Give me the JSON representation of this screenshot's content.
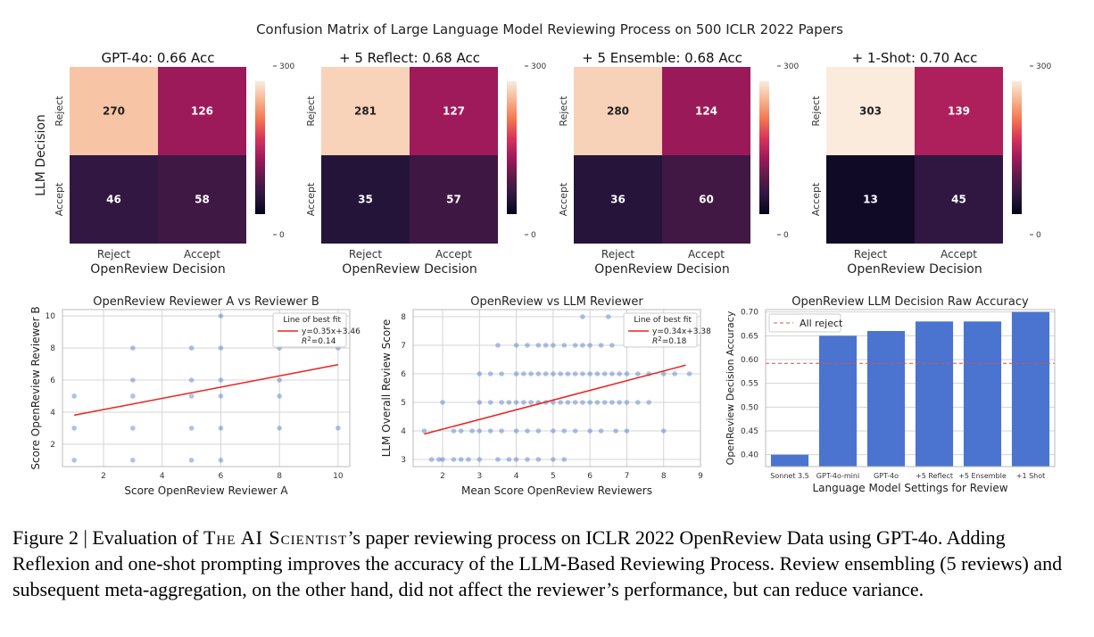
{
  "supertitle": "Confusion Matrix of Large Language Model Reviewing Process on 500 ICLR 2022 Papers",
  "colors": {
    "line": "#e8231f",
    "point": "#4c78c9",
    "bar": "#4a74cf",
    "grid": "#d4d4d4",
    "ref_line": "#d9504a",
    "cmap": [
      "#03051a",
      "#2d1740",
      "#601a4a",
      "#a11a5b",
      "#d8345a",
      "#f37651",
      "#f6b48f",
      "#faebdd"
    ]
  },
  "caption": {
    "prefix": "Figure 2 | Evaluation of ",
    "name": "The AI Scientist",
    "suffix": "’s paper reviewing process on ICLR 2022 OpenReview Data using GPT-4o. Adding Reflexion and one-shot prompting improves the accuracy of the LLM-Based Reviewing Process. Review ensembling (5 reviews) and subsequent meta-aggregation, on the other hand, did not affect the reviewer’s performance, but can reduce variance."
  },
  "chart_data": [
    {
      "type": "heatmap",
      "title": "GPT-4o: 0.66 Acc",
      "row_labels": [
        "Reject",
        "Accept"
      ],
      "col_labels": [
        "Reject",
        "Accept"
      ],
      "values": [
        [
          270,
          126
        ],
        [
          46,
          58
        ]
      ],
      "xlabel": "OpenReview Decision",
      "ylabel": "LLM Decision",
      "colorbar": {
        "min": 0,
        "max": 300,
        "ticks": [
          "0",
          "300"
        ]
      }
    },
    {
      "type": "heatmap",
      "title": "+ 5 Reflect: 0.68 Acc",
      "row_labels": [
        "Reject",
        "Accept"
      ],
      "col_labels": [
        "Reject",
        "Accept"
      ],
      "values": [
        [
          281,
          127
        ],
        [
          35,
          57
        ]
      ],
      "xlabel": "OpenReview Decision",
      "ylabel": "",
      "colorbar": {
        "min": 0,
        "max": 300,
        "ticks": [
          "0",
          "300"
        ]
      }
    },
    {
      "type": "heatmap",
      "title": "+ 5 Ensemble: 0.68 Acc",
      "row_labels": [
        "Reject",
        "Accept"
      ],
      "col_labels": [
        "Reject",
        "Accept"
      ],
      "values": [
        [
          280,
          124
        ],
        [
          36,
          60
        ]
      ],
      "xlabel": "OpenReview Decision",
      "ylabel": "",
      "colorbar": {
        "min": 0,
        "max": 300,
        "ticks": [
          "0",
          "300"
        ]
      }
    },
    {
      "type": "heatmap",
      "title": "+ 1-Shot: 0.70 Acc",
      "row_labels": [
        "Reject",
        "Accept"
      ],
      "col_labels": [
        "Reject",
        "Accept"
      ],
      "values": [
        [
          303,
          139
        ],
        [
          13,
          45
        ]
      ],
      "xlabel": "OpenReview Decision",
      "ylabel": "",
      "colorbar": {
        "min": 0,
        "max": 300,
        "ticks": [
          "0",
          "300"
        ]
      }
    },
    {
      "type": "scatter",
      "title": "OpenReview Reviewer A vs Reviewer B",
      "xlabel": "Score OpenReview Reviewer A",
      "ylabel": "Score OpenReview Reviewer B",
      "xlim": [
        0.6,
        10.4
      ],
      "ylim": [
        0.6,
        10.4
      ],
      "xticks": [
        2,
        4,
        6,
        8,
        10
      ],
      "yticks": [
        2,
        4,
        6,
        8,
        10
      ],
      "points": [
        [
          1,
          1
        ],
        [
          1,
          3
        ],
        [
          1,
          5
        ],
        [
          3,
          1
        ],
        [
          3,
          3
        ],
        [
          3,
          5
        ],
        [
          3,
          6
        ],
        [
          3,
          8
        ],
        [
          5,
          1
        ],
        [
          5,
          3
        ],
        [
          5,
          5
        ],
        [
          5,
          6
        ],
        [
          5,
          8
        ],
        [
          6,
          1
        ],
        [
          6,
          3
        ],
        [
          6,
          5
        ],
        [
          6,
          6
        ],
        [
          6,
          8
        ],
        [
          6,
          10
        ],
        [
          8,
          3
        ],
        [
          8,
          5
        ],
        [
          8,
          6
        ],
        [
          8,
          8
        ],
        [
          10,
          3
        ],
        [
          10,
          8
        ]
      ],
      "fit": {
        "slope": 0.35,
        "intercept": 3.46,
        "x_range": [
          1,
          10
        ]
      },
      "legend": {
        "title": "Line of best fit",
        "equation": "y=0.35x+3.46",
        "r2_label": "R",
        "r2_value": "=0.14"
      }
    },
    {
      "type": "scatter",
      "title": "OpenReview vs LLM Reviewer",
      "xlabel": "Mean Score OpenReview Reviewers",
      "ylabel": "LLM Overall Review Score",
      "xlim": [
        1.2,
        9.0
      ],
      "ylim": [
        2.75,
        8.25
      ],
      "xticks": [
        2,
        3,
        4,
        5,
        6,
        7,
        8,
        9
      ],
      "yticks": [
        3,
        4,
        5,
        6,
        7,
        8
      ],
      "points": [
        [
          1.5,
          4
        ],
        [
          1.7,
          3
        ],
        [
          1.9,
          3
        ],
        [
          2.0,
          3
        ],
        [
          2.3,
          3
        ],
        [
          2.5,
          3
        ],
        [
          2.7,
          3
        ],
        [
          3.0,
          3
        ],
        [
          3.5,
          3
        ],
        [
          3.8,
          3
        ],
        [
          4.0,
          3
        ],
        [
          4.3,
          3
        ],
        [
          4.6,
          3
        ],
        [
          5.0,
          3
        ],
        [
          5.3,
          3
        ],
        [
          2.3,
          4
        ],
        [
          2.5,
          4
        ],
        [
          2.8,
          4
        ],
        [
          3.0,
          4
        ],
        [
          3.3,
          4
        ],
        [
          3.6,
          4
        ],
        [
          4.0,
          4
        ],
        [
          4.3,
          4
        ],
        [
          4.6,
          4
        ],
        [
          5.0,
          4
        ],
        [
          5.3,
          4
        ],
        [
          5.6,
          4
        ],
        [
          6.0,
          4
        ],
        [
          6.3,
          4
        ],
        [
          6.7,
          4
        ],
        [
          7.0,
          4
        ],
        [
          8.0,
          4
        ],
        [
          2.0,
          5
        ],
        [
          3.0,
          5
        ],
        [
          3.3,
          5
        ],
        [
          3.6,
          5
        ],
        [
          3.8,
          5
        ],
        [
          4.0,
          5
        ],
        [
          4.2,
          5
        ],
        [
          4.4,
          5
        ],
        [
          4.6,
          5
        ],
        [
          4.8,
          5
        ],
        [
          5.0,
          5
        ],
        [
          5.2,
          5
        ],
        [
          5.4,
          5
        ],
        [
          5.6,
          5
        ],
        [
          5.8,
          5
        ],
        [
          6.0,
          5
        ],
        [
          6.2,
          5
        ],
        [
          6.4,
          5
        ],
        [
          6.6,
          5
        ],
        [
          6.8,
          5
        ],
        [
          7.0,
          5
        ],
        [
          7.3,
          5
        ],
        [
          7.6,
          5
        ],
        [
          3.0,
          6
        ],
        [
          3.3,
          6
        ],
        [
          3.6,
          6
        ],
        [
          4.0,
          6
        ],
        [
          4.2,
          6
        ],
        [
          4.4,
          6
        ],
        [
          4.6,
          6
        ],
        [
          4.8,
          6
        ],
        [
          5.0,
          6
        ],
        [
          5.2,
          6
        ],
        [
          5.4,
          6
        ],
        [
          5.6,
          6
        ],
        [
          5.8,
          6
        ],
        [
          6.0,
          6
        ],
        [
          6.2,
          6
        ],
        [
          6.4,
          6
        ],
        [
          6.6,
          6
        ],
        [
          6.8,
          6
        ],
        [
          7.0,
          6
        ],
        [
          7.3,
          6
        ],
        [
          7.6,
          6
        ],
        [
          8.0,
          6
        ],
        [
          8.3,
          6
        ],
        [
          8.7,
          6
        ],
        [
          3.5,
          7
        ],
        [
          4.0,
          7
        ],
        [
          4.3,
          7
        ],
        [
          4.6,
          7
        ],
        [
          4.8,
          7
        ],
        [
          5.0,
          7
        ],
        [
          5.3,
          7
        ],
        [
          5.6,
          7
        ],
        [
          5.8,
          7
        ],
        [
          6.0,
          7
        ],
        [
          6.3,
          7
        ],
        [
          6.6,
          7
        ],
        [
          7.0,
          7
        ],
        [
          7.3,
          7
        ],
        [
          7.6,
          7
        ],
        [
          8.0,
          7
        ],
        [
          5.8,
          8
        ],
        [
          6.5,
          8
        ]
      ],
      "fit": {
        "slope": 0.34,
        "intercept": 3.38,
        "x_range": [
          1.5,
          8.6
        ]
      },
      "legend": {
        "title": "Line of best fit",
        "equation": "y=0.34x+3.38",
        "r2_label": "R",
        "r2_value": "=0.18"
      }
    },
    {
      "type": "bar",
      "title": "OpenReview LLM Decision Raw Accuracy",
      "xlabel": "Language Model Settings for Review",
      "ylabel": "OpenReview Decision Accuracy",
      "categories": [
        "Sonnet 3.5",
        "GPT-4o-mini",
        "GPT-4o",
        "+5 Reflect",
        "+5 Ensemble",
        "+1 Shot"
      ],
      "values": [
        0.4,
        0.65,
        0.66,
        0.68,
        0.68,
        0.7
      ],
      "ylim": [
        0.375,
        0.705
      ],
      "yticks": [
        "0.40",
        "0.45",
        "0.50",
        "0.55",
        "0.60",
        "0.65",
        "0.70"
      ],
      "reference": {
        "label": "All reject",
        "value": 0.592
      }
    }
  ]
}
